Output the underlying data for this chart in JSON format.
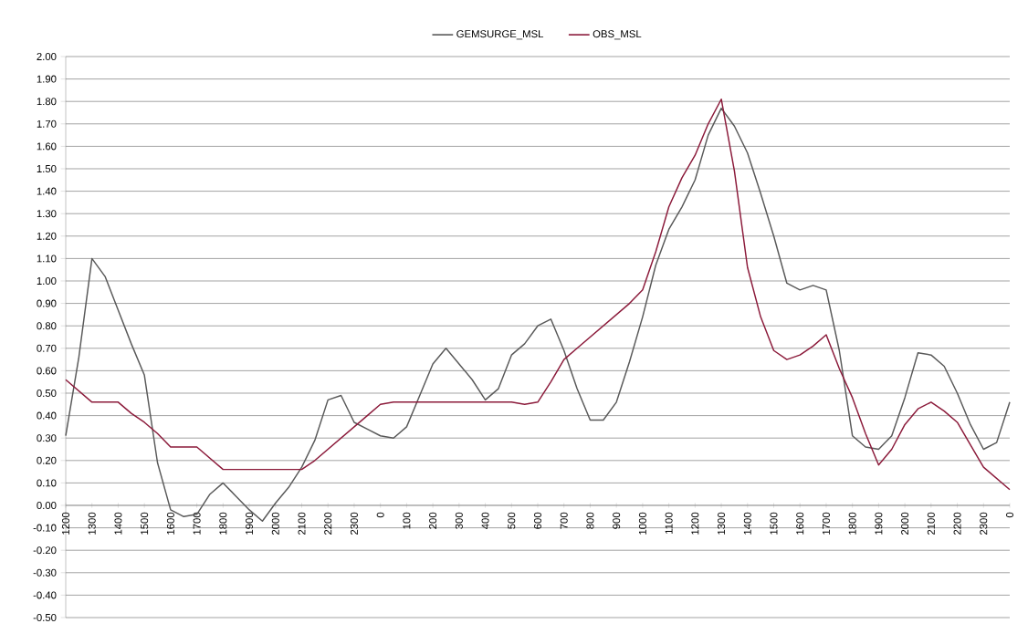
{
  "chart_data": {
    "type": "line",
    "categories": [
      "1200",
      null,
      "1300",
      null,
      "1400",
      null,
      "1500",
      null,
      "1600",
      null,
      "1700",
      null,
      "1800",
      null,
      "1900",
      null,
      "2000",
      null,
      "2100",
      null,
      "2200",
      null,
      "2300",
      null,
      "0",
      null,
      "100",
      null,
      "200",
      null,
      "300",
      null,
      "400",
      null,
      "500",
      null,
      "600",
      null,
      "700",
      null,
      "800",
      null,
      "900",
      null,
      "1000",
      null,
      "1100",
      null,
      "1200",
      null,
      "1300",
      null,
      "1400",
      null,
      "1500",
      null,
      "1600",
      null,
      "1700",
      null,
      "1800",
      null,
      "1900",
      null,
      "2000",
      null,
      "2100",
      null,
      "2200",
      null,
      "2300",
      null,
      "0"
    ],
    "series": [
      {
        "name": "GEMSURGE_MSL",
        "color": "#595959",
        "values": [
          0.31,
          0.66,
          1.1,
          1.02,
          0.87,
          0.72,
          0.58,
          0.19,
          -0.02,
          -0.05,
          -0.04,
          0.05,
          0.1,
          0.04,
          -0.02,
          -0.07,
          0.01,
          0.08,
          0.17,
          0.29,
          0.47,
          0.49,
          0.37,
          0.34,
          0.31,
          0.3,
          0.35,
          0.49,
          0.63,
          0.7,
          0.63,
          0.56,
          0.47,
          0.52,
          0.67,
          0.72,
          0.8,
          0.83,
          0.69,
          0.52,
          0.38,
          0.38,
          0.46,
          0.64,
          0.84,
          1.07,
          1.23,
          1.33,
          1.45,
          1.65,
          1.77,
          1.69,
          1.57,
          1.39,
          1.2,
          0.99,
          0.96,
          0.98,
          0.96,
          0.69,
          0.31,
          0.26,
          0.25,
          0.31,
          0.48,
          0.68,
          0.67,
          0.62,
          0.5,
          0.36,
          0.25,
          0.28,
          0.46
        ]
      },
      {
        "name": "OBS_MSL",
        "color": "#8b1a3a",
        "values": [
          0.56,
          0.51,
          0.46,
          0.46,
          0.46,
          0.41,
          0.37,
          0.32,
          0.26,
          0.26,
          0.26,
          0.21,
          0.16,
          0.16,
          0.16,
          0.16,
          0.16,
          0.16,
          0.16,
          0.2,
          0.25,
          0.3,
          0.35,
          0.4,
          0.45,
          0.46,
          0.46,
          0.46,
          0.46,
          0.46,
          0.46,
          0.46,
          0.46,
          0.46,
          0.46,
          0.45,
          0.46,
          0.55,
          0.65,
          0.7,
          0.75,
          0.8,
          0.85,
          0.9,
          0.96,
          1.13,
          1.33,
          1.46,
          1.56,
          1.7,
          1.81,
          1.49,
          1.06,
          0.84,
          0.69,
          0.65,
          0.67,
          0.71,
          0.76,
          0.61,
          0.48,
          0.32,
          0.18,
          0.25,
          0.36,
          0.43,
          0.46,
          0.42,
          0.37,
          0.27,
          0.17,
          0.12,
          0.07
        ]
      }
    ],
    "ylim": [
      -0.5,
      2.0
    ],
    "yticks": [
      {
        "value": -0.5,
        "label": "-0.50"
      },
      {
        "value": -0.4,
        "label": "-0.40"
      },
      {
        "value": -0.3,
        "label": "-0.30"
      },
      {
        "value": -0.2,
        "label": "-0.20"
      },
      {
        "value": -0.1,
        "label": "-0.10"
      },
      {
        "value": 0,
        "label": "0.00"
      },
      {
        "value": 0.1,
        "label": "0.10"
      },
      {
        "value": 0.2,
        "label": "0.20"
      },
      {
        "value": 0.3,
        "label": "0.30"
      },
      {
        "value": 0.4,
        "label": "0.40"
      },
      {
        "value": 0.5,
        "label": "0.50"
      },
      {
        "value": 0.6,
        "label": "0.60"
      },
      {
        "value": 0.7,
        "label": "0.70"
      },
      {
        "value": 0.8,
        "label": "0.80"
      },
      {
        "value": 0.9,
        "label": "0.90"
      },
      {
        "value": 1.0,
        "label": "1.00"
      },
      {
        "value": 1.1,
        "label": "1.10"
      },
      {
        "value": 1.2,
        "label": "1.20"
      },
      {
        "value": 1.3,
        "label": "1.30"
      },
      {
        "value": 1.4,
        "label": "1.40"
      },
      {
        "value": 1.5,
        "label": "1.50"
      },
      {
        "value": 1.6,
        "label": "1.60"
      },
      {
        "value": 1.7,
        "label": "1.70"
      },
      {
        "value": 1.8,
        "label": "1.80"
      },
      {
        "value": 1.9,
        "label": "1.90"
      },
      {
        "value": 2.0,
        "label": "2.00"
      }
    ],
    "grid": "y",
    "legend": "top",
    "marker": "none",
    "line_style": "solid"
  }
}
